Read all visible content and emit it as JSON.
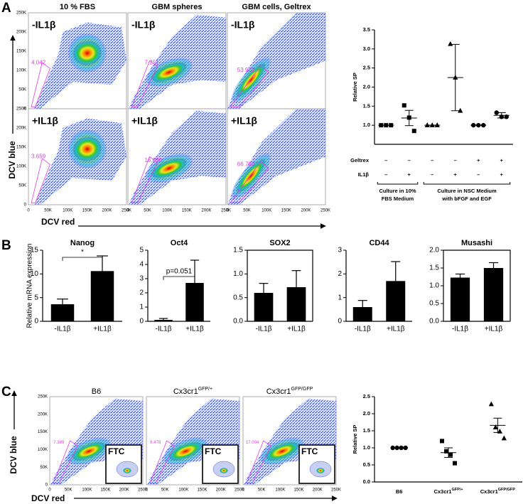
{
  "panel_labels": [
    "A",
    "B",
    "C"
  ],
  "flow_ticks": [
    "0",
    "50K",
    "100K",
    "150K",
    "200K",
    "250K"
  ],
  "axis_y_label": "DCV blue",
  "axis_x_label": "DCV red",
  "flow_a": {
    "columns": [
      "10 % FBS",
      "GBM spheres",
      "GBM cells, Geltrex"
    ],
    "rows": [
      "-IL1β",
      "+IL1β"
    ],
    "gates": [
      [
        "4.042",
        "7.251",
        "53.972"
      ],
      [
        "3.659",
        "16.090",
        "66.763"
      ]
    ]
  },
  "flow_c": {
    "columns": [
      "B6",
      "Cx3cr1",
      "Cx3cr1"
    ],
    "column_superscripts": [
      null,
      "GFP/+",
      "GFP/GFP"
    ],
    "gates": [
      "7.389",
      "6.478",
      "17.004"
    ],
    "inset_label": "FTC"
  },
  "chart_data": [
    {
      "type": "dot",
      "ylabel": "Relative SP",
      "color": "#000000",
      "categories": [
        null,
        null,
        null,
        null,
        null,
        null
      ],
      "points": [
        [
          1,
          1,
          1
        ],
        [
          1.52,
          1.2,
          0.85
        ],
        [
          1,
          1,
          1
        ],
        [
          3.13,
          2.25,
          1.38
        ],
        [
          1,
          1,
          1
        ],
        [
          1.33,
          1.22,
          1.22
        ]
      ],
      "means": [
        1,
        1.19,
        1,
        2.25,
        1,
        1.26
      ],
      "errors": [
        0,
        0.2,
        0,
        0.87,
        0,
        0.07
      ],
      "markers": [
        "square",
        "square",
        "triangle",
        "triangle",
        "circle",
        "circle"
      ],
      "ylim": [
        0.5,
        3.5
      ],
      "yticks": [
        {
          "value": 1,
          "label": "1.0"
        },
        {
          "value": 1.5,
          "label": "1.5"
        },
        {
          "value": 2,
          "label": "2.0"
        },
        {
          "value": 2.5,
          "label": "2.5"
        },
        {
          "value": 3,
          "label": "3.0"
        },
        {
          "value": 3.5,
          "label": "3.5"
        }
      ],
      "conditions": [
        {
          "name": "Geltrex",
          "signs": [
            "–",
            "–",
            "–",
            "–",
            "+",
            "+"
          ]
        },
        {
          "name": "IL1β",
          "signs": [
            "–",
            "+",
            "–",
            "+",
            "–",
            "+"
          ]
        }
      ],
      "group_labels": [
        [
          "Culture in 10%",
          "FBS Medium"
        ],
        [
          "Culture in NSC Medium",
          "with bFGF and EGF"
        ]
      ]
    },
    {
      "type": "bar",
      "title": "Nanog",
      "ylabel": "Relative mRNA expression",
      "color": "#000000",
      "frame": false,
      "categories": [
        "-IL1β",
        "+IL1β"
      ],
      "values": [
        3.6,
        10.6
      ],
      "errors": [
        1.1,
        3.2
      ],
      "ylim": [
        0,
        15
      ],
      "yticks": [
        0,
        5,
        10,
        15
      ],
      "annotation": "*"
    },
    {
      "type": "bar",
      "title": "Oct4",
      "color": "#000000",
      "frame": false,
      "categories": [
        "-IL1β",
        "+IL1β"
      ],
      "values": [
        0.1,
        2.7
      ],
      "errors": [
        0.1,
        1.6
      ],
      "ylim": [
        0,
        5
      ],
      "yticks": [
        0,
        1,
        2,
        3,
        4,
        5
      ],
      "annotation": "p=0.051"
    },
    {
      "type": "bar",
      "title": "SOX2",
      "color": "#000000",
      "frame": true,
      "categories": [
        "-IL1β",
        "+IL1β"
      ],
      "values": [
        0.6,
        0.72
      ],
      "errors": [
        0.2,
        0.35
      ],
      "ylim": [
        0,
        1.5
      ],
      "yticks": [
        {
          "value": 0,
          "label": "0.0"
        },
        {
          "value": 0.5,
          "label": "0.5"
        },
        {
          "value": 1,
          "label": "1.0"
        },
        {
          "value": 1.5,
          "label": "1.5"
        }
      ]
    },
    {
      "type": "bar",
      "title": "CD44",
      "color": "#000000",
      "frame": false,
      "categories": [
        "-IL1β",
        "+IL1β"
      ],
      "values": [
        0.6,
        1.7
      ],
      "errors": [
        0.28,
        0.82
      ],
      "ylim": [
        0,
        3
      ],
      "yticks": [
        0,
        1,
        2,
        3
      ]
    },
    {
      "type": "bar",
      "title": "Musashi",
      "color": "#000000",
      "frame": true,
      "categories": [
        "-IL1β",
        "+IL1β"
      ],
      "values": [
        1.23,
        1.5
      ],
      "errors": [
        0.1,
        0.15
      ],
      "ylim": [
        0,
        2
      ],
      "yticks": [
        {
          "value": 0,
          "label": "0.0"
        },
        {
          "value": 0.5,
          "label": "0.5"
        },
        {
          "value": 1,
          "label": "1.0"
        },
        {
          "value": 1.5,
          "label": "1.5"
        },
        {
          "value": 2,
          "label": "2.0"
        }
      ]
    },
    {
      "type": "dot",
      "ylabel": "Relative SP",
      "color": "#000000",
      "categories": [
        "B6",
        "Cx3cr1",
        "Cx3cr1"
      ],
      "category_superscripts": [
        null,
        "GFP/+",
        "GFP/GFP"
      ],
      "points": [
        [
          1,
          1,
          1,
          1
        ],
        [
          1.2,
          0.9,
          0.8,
          0.55
        ],
        [
          2.28,
          1.6,
          1.48,
          1.28
        ]
      ],
      "means": [
        1,
        0.86,
        1.66
      ],
      "errors": [
        0,
        0.14,
        0.21
      ],
      "markers": [
        "circle",
        "square",
        "triangle"
      ],
      "ylim": [
        0,
        2.5
      ],
      "yticks": [
        {
          "value": 0,
          "label": "0.0"
        },
        {
          "value": 0.5,
          "label": "0.5"
        },
        {
          "value": 1,
          "label": "1.0"
        },
        {
          "value": 1.5,
          "label": "1.5"
        },
        {
          "value": 2,
          "label": "2.0"
        },
        {
          "value": 2.5,
          "label": "2.5"
        }
      ]
    }
  ]
}
